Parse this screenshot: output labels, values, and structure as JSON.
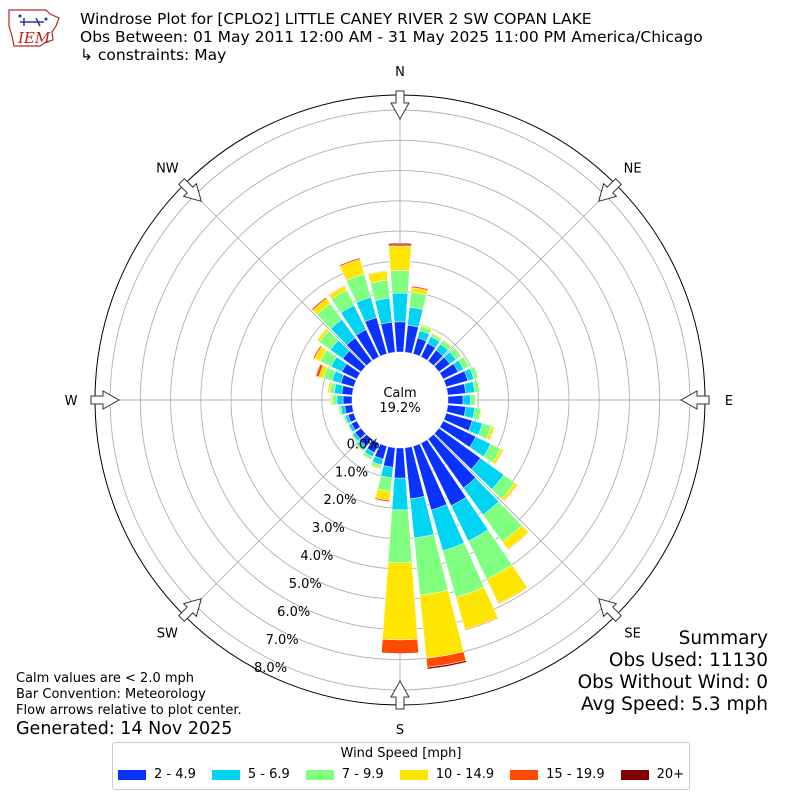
{
  "header": {
    "title_line1": "Windrose Plot for [CPLO2] LITTLE CANEY RIVER 2 SW COPAN LAKE",
    "title_line2": "Obs Between: 01 May 2011 12:00 AM - 31 May 2025 11:00 PM America/Chicago",
    "title_line3": "↳ constraints: May",
    "logo_text": "IEM"
  },
  "summary": {
    "heading": "Summary",
    "obs_used": "Obs Used: 11130",
    "obs_without_wind": "Obs Without Wind: 0",
    "avg_speed": "Avg Speed: 5.3 mph"
  },
  "notes": {
    "calm_note": "Calm values are < 2.0 mph",
    "bar_convention": "Bar Convention: Meteorology",
    "flow_arrows": "Flow arrows relative to plot center.",
    "generated": "Generated: 14 Nov 2025"
  },
  "legend": {
    "title": "Wind Speed [mph]",
    "items": [
      {
        "label": "2 - 4.9",
        "color": "#0a32ff"
      },
      {
        "label": "5 - 6.9",
        "color": "#00d4f5"
      },
      {
        "label": "7 - 9.9",
        "color": "#80ff80"
      },
      {
        "label": "10 - 14.9",
        "color": "#ffe600"
      },
      {
        "label": "15 - 19.9",
        "color": "#ff4a00"
      },
      {
        "label": "20+",
        "color": "#800000"
      }
    ]
  },
  "chart_data": {
    "type": "windrose",
    "calm_label": "Calm",
    "calm_value": "19.2%",
    "radial_tick_labels": [
      "0.0%",
      "1.0%",
      "2.0%",
      "3.0%",
      "4.0%",
      "5.0%",
      "6.0%",
      "7.0%",
      "8.0%"
    ],
    "rmax_percent": 8.5,
    "compass_labels": {
      "N": "N",
      "NE": "NE",
      "E": "E",
      "SE": "SE",
      "S": "S",
      "SW": "SW",
      "W": "W",
      "NW": "NW"
    },
    "speed_bins": [
      "2 - 4.9",
      "5 - 6.9",
      "7 - 9.9",
      "10 - 14.9",
      "15 - 19.9",
      "20+"
    ],
    "directions_deg": [
      0,
      10,
      20,
      30,
      40,
      50,
      60,
      70,
      80,
      90,
      100,
      110,
      120,
      130,
      140,
      150,
      160,
      170,
      180,
      190,
      200,
      210,
      220,
      230,
      240,
      250,
      260,
      270,
      280,
      290,
      300,
      310,
      320,
      330,
      340,
      350
    ],
    "cumulative_percent": [
      [
        1.0,
        1.95,
        2.7,
        3.5,
        3.55,
        3.6
      ],
      [
        0.9,
        1.5,
        2.0,
        2.15,
        2.2,
        2.2
      ],
      [
        0.55,
        0.8,
        0.95,
        1.0,
        1.0,
        1.0
      ],
      [
        0.5,
        0.75,
        0.85,
        0.88,
        0.88,
        0.88
      ],
      [
        0.45,
        0.7,
        0.85,
        0.88,
        0.88,
        0.88
      ],
      [
        0.45,
        0.7,
        0.9,
        0.92,
        0.92,
        0.92
      ],
      [
        0.55,
        0.75,
        0.95,
        0.97,
        0.97,
        0.97
      ],
      [
        0.75,
        0.95,
        1.1,
        1.12,
        1.12,
        1.12
      ],
      [
        0.6,
        0.9,
        1.05,
        1.08,
        1.08,
        1.08
      ],
      [
        0.5,
        0.75,
        0.9,
        0.92,
        0.92,
        0.92
      ],
      [
        0.6,
        0.9,
        1.1,
        1.13,
        1.13,
        1.13
      ],
      [
        0.9,
        1.25,
        1.55,
        1.65,
        1.67,
        1.67
      ],
      [
        1.2,
        1.75,
        2.1,
        2.2,
        2.22,
        2.22
      ],
      [
        1.7,
        2.65,
        3.1,
        3.2,
        3.22,
        3.22
      ],
      [
        2.0,
        3.1,
        4.2,
        4.5,
        4.52,
        4.52
      ],
      [
        2.3,
        3.6,
        5.0,
        5.9,
        5.92,
        5.92
      ],
      [
        2.2,
        3.6,
        5.2,
        6.3,
        6.33,
        6.33
      ],
      [
        1.7,
        3.0,
        4.9,
        7.0,
        7.3,
        7.36
      ],
      [
        1.0,
        2.05,
        3.8,
        6.35,
        6.8,
        6.8
      ],
      [
        0.65,
        1.0,
        1.45,
        1.75,
        1.8,
        1.8
      ],
      [
        0.45,
        0.65,
        0.75,
        0.8,
        0.8,
        0.8
      ],
      [
        0.35,
        0.5,
        0.6,
        0.62,
        0.62,
        0.62
      ],
      [
        0.3,
        0.45,
        0.5,
        0.52,
        0.52,
        0.52
      ],
      [
        0.25,
        0.35,
        0.4,
        0.42,
        0.42,
        0.42
      ],
      [
        0.2,
        0.3,
        0.33,
        0.35,
        0.35,
        0.35
      ],
      [
        0.2,
        0.3,
        0.35,
        0.37,
        0.37,
        0.37
      ],
      [
        0.25,
        0.38,
        0.45,
        0.47,
        0.47,
        0.47
      ],
      [
        0.3,
        0.5,
        0.65,
        0.7,
        0.72,
        0.72
      ],
      [
        0.35,
        0.6,
        0.75,
        0.82,
        0.82,
        0.82
      ],
      [
        0.45,
        0.75,
        1.05,
        1.2,
        1.3,
        1.32
      ],
      [
        0.55,
        0.95,
        1.35,
        1.55,
        1.6,
        1.6
      ],
      [
        0.75,
        1.25,
        1.7,
        1.8,
        1.8,
        1.8
      ],
      [
        0.95,
        1.7,
        2.35,
        2.55,
        2.6,
        2.6
      ],
      [
        1.0,
        1.9,
        2.45,
        2.6,
        2.62,
        2.62
      ],
      [
        1.25,
        1.95,
        2.75,
        3.25,
        3.3,
        3.3
      ],
      [
        1.0,
        1.8,
        2.4,
        2.7,
        2.72,
        2.72
      ]
    ]
  }
}
